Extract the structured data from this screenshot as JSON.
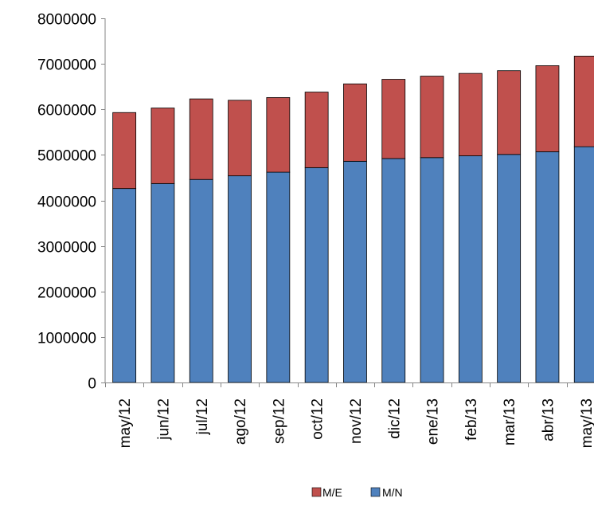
{
  "chart_data": {
    "type": "bar",
    "stacked": true,
    "categories": [
      "may/12",
      "jun/12",
      "jul/12",
      "ago/12",
      "sep/12",
      "oct/12",
      "nov/12",
      "dic/12",
      "ene/13",
      "feb/13",
      "mar/13",
      "abr/13",
      "may/13"
    ],
    "series": [
      {
        "name": "M/N",
        "color": "#4f81bd",
        "values": [
          4260000,
          4370000,
          4460000,
          4540000,
          4620000,
          4720000,
          4860000,
          4920000,
          4940000,
          4980000,
          5010000,
          5070000,
          5180000
        ]
      },
      {
        "name": "M/E",
        "color": "#c0504d",
        "values": [
          1670000,
          1660000,
          1770000,
          1660000,
          1640000,
          1660000,
          1700000,
          1740000,
          1790000,
          1810000,
          1840000,
          1890000,
          1990000
        ]
      }
    ],
    "title": "",
    "xlabel": "",
    "ylabel": "",
    "ylim": [
      0,
      8000000
    ],
    "yticks": [
      "0",
      "1000000",
      "2000000",
      "3000000",
      "4000000",
      "5000000",
      "6000000",
      "7000000",
      "8000000"
    ],
    "grid": false,
    "legend": {
      "position": "bottom",
      "entries": [
        "M/E",
        "M/N"
      ]
    }
  }
}
